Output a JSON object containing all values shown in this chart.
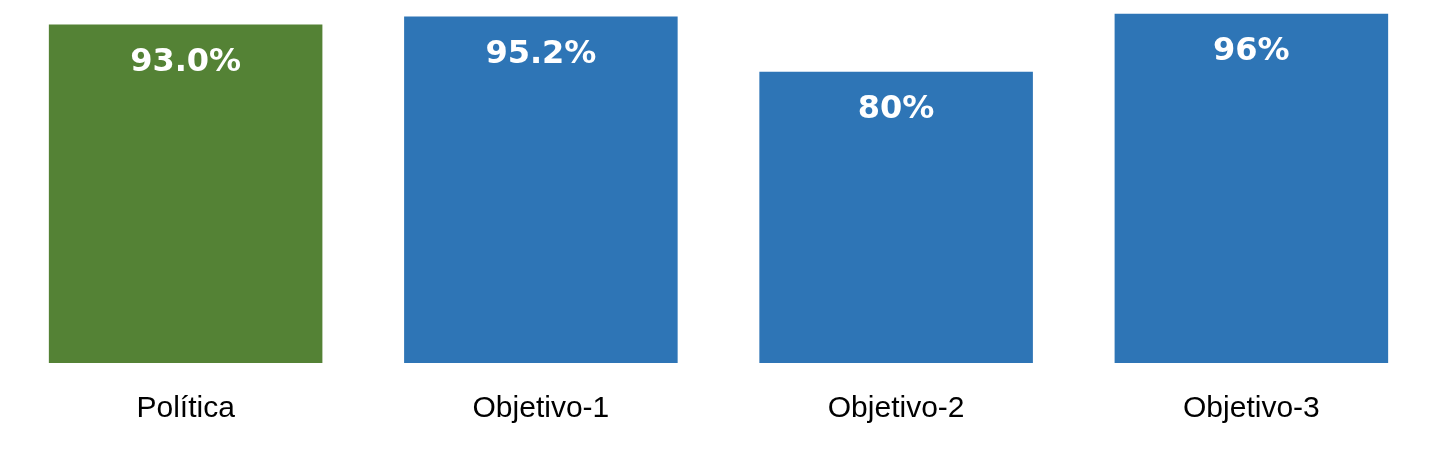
{
  "chart_data": {
    "type": "bar",
    "categories": [
      "Política",
      "Objetivo-1",
      "Objetivo-2",
      "Objetivo-3"
    ],
    "values": [
      93.0,
      95.2,
      80,
      96
    ],
    "colors": [
      "#548235",
      "#2e75b6",
      "#2e75b6",
      "#2e75b6"
    ],
    "value_labels": [
      "93.0%",
      "95.2%",
      "80%",
      "96%"
    ],
    "ylim": [
      0,
      97
    ],
    "tick_labels": "x",
    "grid": false,
    "legend": false
  }
}
